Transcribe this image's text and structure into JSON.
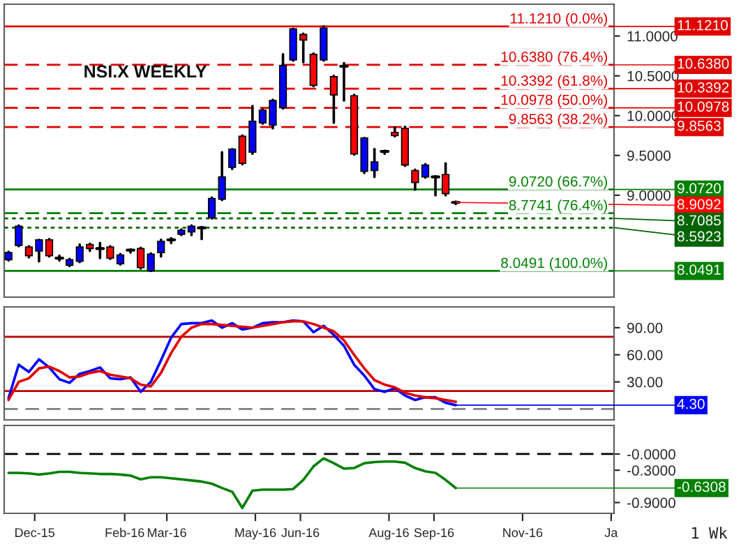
{
  "chart_data": [
    {
      "type": "candlestick",
      "title": "NSI.X WEEKLY",
      "tick_labels": "y",
      "grid": false,
      "annotations": [
        {
          "text": "11.1210",
          "x": "2017-01-03",
          "y": 11.121
        },
        {
          "text": "10.6380",
          "x": "2017-01-03",
          "y": 10.638
        },
        {
          "text": "10.3392",
          "x": "2017-01-03",
          "y": 10.3392
        },
        {
          "text": "10.0978",
          "x": "2017-01-03",
          "y": 10.0978
        },
        {
          "text": "9.8563",
          "x": "2017-01-03",
          "y": 9.8563
        },
        {
          "text": "9.0720",
          "x": "2017-01-03",
          "y": 9.072
        },
        {
          "text": "8.9092",
          "x": "2016-09-16",
          "y": 8.9092
        },
        {
          "text": "8.7085",
          "x": "2017-01-03",
          "y": 8.7085
        },
        {
          "text": "8.5923",
          "x": "2017-01-03",
          "y": 8.5923
        },
        {
          "text": "8.0491",
          "x": "2017-01-03",
          "y": 8.0491
        }
      ],
      "x": [
        "2015-11-13",
        "2015-11-20",
        "2015-11-27",
        "2015-12-04",
        "2015-12-11",
        "2015-12-18",
        "2015-12-25",
        "2016-01-01",
        "2016-01-08",
        "2016-01-15",
        "2016-01-22",
        "2016-01-29",
        "2016-02-05",
        "2016-02-12",
        "2016-02-19",
        "2016-02-26",
        "2016-03-04",
        "2016-03-11",
        "2016-03-18",
        "2016-03-25",
        "2016-04-01",
        "2016-04-08",
        "2016-04-15",
        "2016-04-22",
        "2016-04-29",
        "2016-05-06",
        "2016-05-13",
        "2016-05-20",
        "2016-05-27",
        "2016-06-03",
        "2016-06-10",
        "2016-06-17",
        "2016-06-24",
        "2016-07-01",
        "2016-07-08",
        "2016-07-15",
        "2016-07-22",
        "2016-07-29",
        "2016-08-05",
        "2016-08-12",
        "2016-08-19",
        "2016-08-26",
        "2016-09-02",
        "2016-09-09",
        "2016-09-16"
      ],
      "ohlc": [
        [
          8.19,
          8.29,
          8.18,
          8.28
        ],
        [
          8.37,
          8.62,
          8.36,
          8.61
        ],
        [
          8.35,
          8.36,
          8.22,
          8.24
        ],
        [
          8.3,
          8.44,
          8.17,
          8.44
        ],
        [
          8.44,
          8.45,
          8.23,
          8.24
        ],
        [
          8.21,
          8.24,
          8.18,
          8.21
        ],
        [
          8.12,
          8.2,
          8.11,
          8.19
        ],
        [
          8.17,
          8.38,
          8.16,
          8.35
        ],
        [
          8.38,
          8.39,
          8.3,
          8.33
        ],
        [
          8.33,
          8.4,
          8.21,
          8.33
        ],
        [
          8.35,
          8.36,
          8.2,
          8.21
        ],
        [
          8.14,
          8.26,
          8.13,
          8.25
        ],
        [
          8.31,
          8.32,
          8.28,
          8.31
        ],
        [
          8.33,
          8.34,
          8.08,
          8.09
        ],
        [
          8.05,
          8.27,
          8.0491,
          8.26
        ],
        [
          8.28,
          8.44,
          8.23,
          8.42
        ],
        [
          8.44,
          8.46,
          8.4,
          8.44
        ],
        [
          8.51,
          8.57,
          8.5,
          8.56
        ],
        [
          8.54,
          8.62,
          8.5,
          8.61
        ],
        [
          8.59,
          8.6,
          8.45,
          8.59
        ],
        [
          8.72,
          8.97,
          8.7085,
          8.96
        ],
        [
          8.95,
          9.54,
          8.94,
          9.23
        ],
        [
          9.35,
          9.58,
          9.33,
          9.58
        ],
        [
          9.74,
          9.75,
          9.39,
          9.4
        ],
        [
          9.54,
          10.12,
          9.52,
          9.93
        ],
        [
          9.91,
          10.08,
          9.9,
          10.07
        ],
        [
          9.88,
          10.2,
          9.84,
          10.19
        ],
        [
          10.1,
          10.77,
          10.09,
          10.63
        ],
        [
          10.7,
          11.09,
          10.69,
          11.09
        ],
        [
          11.02,
          11.03,
          10.67,
          10.95
        ],
        [
          10.77,
          10.78,
          10.37,
          10.38
        ],
        [
          10.7,
          11.121,
          10.69,
          11.1
        ],
        [
          10.49,
          10.5,
          9.91,
          10.26
        ],
        [
          10.62,
          10.66,
          10.19,
          10.62
        ],
        [
          10.25,
          10.26,
          9.51,
          9.52
        ],
        [
          9.3,
          9.72,
          9.28,
          9.72
        ],
        [
          9.31,
          9.58,
          9.23,
          9.42
        ],
        [
          9.55,
          9.56,
          9.52,
          9.55
        ],
        [
          9.79,
          9.85,
          9.74,
          9.75
        ],
        [
          9.84,
          9.86,
          9.37,
          9.38
        ],
        [
          9.31,
          9.32,
          9.07,
          9.16
        ],
        [
          9.23,
          9.39,
          9.22,
          9.38
        ],
        [
          9.23,
          9.24,
          9.0,
          9.23
        ],
        [
          9.26,
          9.4,
          9.0,
          9.02
        ],
        [
          8.9092,
          8.92,
          8.89,
          8.9092
        ]
      ],
      "colors": [
        "#0000ff",
        "#0000ff",
        "#ff0000",
        "#0000ff",
        "#ff0000",
        "#000000",
        "#0000ff",
        "#0000ff",
        "#ff0000",
        "#000000",
        "#ff0000",
        "#0000ff",
        "#000000",
        "#ff0000",
        "#0000ff",
        "#0000ff",
        "#000000",
        "#0000ff",
        "#0000ff",
        "#000000",
        "#0000ff",
        "#0000ff",
        "#0000ff",
        "#ff0000",
        "#0000ff",
        "#0000ff",
        "#0000ff",
        "#0000ff",
        "#0000ff",
        "#ff0000",
        "#ff0000",
        "#0000ff",
        "#ff0000",
        "#000000",
        "#ff0000",
        "#0000ff",
        "#0000ff",
        "#000000",
        "#ff0000",
        "#ff0000",
        "#ff0000",
        "#0000ff",
        "#000000",
        "#ff0000",
        "#000000"
      ],
      "xlim": [
        "2015-11-10",
        "2017-01-03"
      ],
      "ylim": [
        7.72,
        11.4
      ],
      "yticks": [
        {
          "value": 9.0,
          "label": "9.0000"
        },
        {
          "value": 9.5,
          "label": "9.5000"
        },
        {
          "value": 10.0,
          "label": "10.0000"
        },
        {
          "value": 10.5,
          "label": "10.5000"
        },
        {
          "value": 11.0,
          "label": "11.0000"
        }
      ],
      "ref_lines": [
        {
          "axis": "y",
          "value": 11.121,
          "label": "11.1210 (0.0%)",
          "color": "#e00000",
          "line_style": "solid"
        },
        {
          "axis": "y",
          "value": 10.638,
          "label": "10.6380 (76.4%)",
          "color": "#e00000",
          "line_style": "dashed"
        },
        {
          "axis": "y",
          "value": 10.3392,
          "label": "10.3392 (61.8%)",
          "color": "#e00000",
          "line_style": "dashed"
        },
        {
          "axis": "y",
          "value": 10.0978,
          "label": "10.0978 (50.0%)",
          "color": "#e00000",
          "line_style": "dashed"
        },
        {
          "axis": "y",
          "value": 9.8563,
          "label": "9.8563 (38.2%)",
          "color": "#e00000",
          "line_style": "dashed"
        },
        {
          "axis": "y",
          "value": 9.072,
          "label": "9.0720 (66.7%)",
          "color": "#008000",
          "line_style": "solid"
        },
        {
          "axis": "y",
          "value": 8.7741,
          "label": "8.7741 (76.4%)",
          "color": "#008000",
          "line_style": "dashed"
        },
        {
          "axis": "y",
          "value": 8.7085,
          "color": "#006400",
          "line_style": "dotted"
        },
        {
          "axis": "y",
          "value": 8.5923,
          "color": "#006400",
          "line_style": "dotted"
        },
        {
          "axis": "y",
          "value": 8.0491,
          "label": "8.0491 (100.0%)",
          "color": "#008000",
          "line_style": "solid"
        }
      ]
    },
    {
      "type": "line",
      "tick_labels": "y",
      "grid": false,
      "annotations": [
        {
          "text": "4.30",
          "x": "2016-09-16",
          "y": 4.3
        }
      ],
      "x": [
        "2015-11-13",
        "2015-11-20",
        "2015-11-27",
        "2015-12-04",
        "2015-12-11",
        "2015-12-18",
        "2015-12-25",
        "2016-01-01",
        "2016-01-08",
        "2016-01-15",
        "2016-01-22",
        "2016-01-29",
        "2016-02-05",
        "2016-02-12",
        "2016-02-19",
        "2016-02-26",
        "2016-03-04",
        "2016-03-11",
        "2016-03-18",
        "2016-03-25",
        "2016-04-01",
        "2016-04-08",
        "2016-04-15",
        "2016-04-22",
        "2016-04-29",
        "2016-05-06",
        "2016-05-13",
        "2016-05-20",
        "2016-05-27",
        "2016-06-03",
        "2016-06-10",
        "2016-06-17",
        "2016-06-24",
        "2016-07-01",
        "2016-07-08",
        "2016-07-15",
        "2016-07-22",
        "2016-07-29",
        "2016-08-05",
        "2016-08-12",
        "2016-08-19",
        "2016-08-26",
        "2016-09-02",
        "2016-09-09",
        "2016-09-16"
      ],
      "series": [
        {
          "color": "#0000ff",
          "values": [
            12,
            49,
            41,
            55,
            46,
            33,
            29,
            39,
            42,
            46,
            34,
            33,
            35,
            19,
            30,
            54,
            79,
            94,
            95,
            95,
            98,
            90,
            95,
            88,
            90,
            95,
            96,
            96,
            98,
            97,
            85,
            92,
            82,
            70,
            49,
            37,
            22,
            19,
            23,
            15,
            10,
            13,
            13,
            7,
            4.3
          ]
        },
        {
          "color": "#e00000",
          "values": [
            10,
            30,
            34,
            45,
            47,
            42,
            35,
            36,
            40,
            42,
            38,
            36,
            34,
            27,
            25,
            40,
            62,
            80,
            90,
            94,
            94,
            93,
            92,
            91,
            90,
            92,
            94,
            96,
            97,
            97,
            94,
            90,
            86,
            76,
            60,
            45,
            32,
            27,
            24,
            18,
            15,
            13,
            12,
            10,
            8
          ]
        }
      ],
      "xlim": [
        "2015-11-10",
        "2017-01-03"
      ],
      "ylim": [
        -12,
        113
      ],
      "yticks": [
        {
          "value": 30,
          "label": "30.00"
        },
        {
          "value": 60,
          "label": "60.00"
        },
        {
          "value": 90,
          "label": "90.00"
        }
      ],
      "ref_lines": [
        {
          "axis": "y",
          "value": 80,
          "color": "#c00000",
          "line_style": "solid"
        },
        {
          "axis": "y",
          "value": 20,
          "color": "#c00000",
          "line_style": "solid"
        },
        {
          "axis": "y",
          "value": 0,
          "color": "#808080",
          "line_style": "dashed"
        }
      ]
    },
    {
      "type": "line",
      "grid": false,
      "annotations": [
        "1 Wk",
        {
          "text": "-0.6308",
          "x": "2016-09-16",
          "y": -0.6308
        }
      ],
      "x": [
        "2015-11-13",
        "2015-11-20",
        "2015-11-27",
        "2015-12-04",
        "2015-12-11",
        "2015-12-18",
        "2015-12-25",
        "2016-01-01",
        "2016-01-08",
        "2016-01-15",
        "2016-01-22",
        "2016-01-29",
        "2016-02-05",
        "2016-02-12",
        "2016-02-19",
        "2016-02-26",
        "2016-03-04",
        "2016-03-11",
        "2016-03-18",
        "2016-03-25",
        "2016-04-01",
        "2016-04-08",
        "2016-04-15",
        "2016-04-22",
        "2016-04-29",
        "2016-05-06",
        "2016-05-13",
        "2016-05-20",
        "2016-05-27",
        "2016-06-03",
        "2016-06-10",
        "2016-06-17",
        "2016-06-24",
        "2016-07-01",
        "2016-07-08",
        "2016-07-15",
        "2016-07-22",
        "2016-07-29",
        "2016-08-05",
        "2016-08-12",
        "2016-08-19",
        "2016-08-26",
        "2016-09-02",
        "2016-09-09",
        "2016-09-16"
      ],
      "series": [
        {
          "color": "#008000",
          "values": [
            -0.35,
            -0.35,
            -0.36,
            -0.38,
            -0.36,
            -0.33,
            -0.33,
            -0.35,
            -0.36,
            -0.37,
            -0.37,
            -0.38,
            -0.4,
            -0.47,
            -0.43,
            -0.43,
            -0.45,
            -0.47,
            -0.49,
            -0.51,
            -0.55,
            -0.63,
            -0.7,
            -1.0,
            -0.68,
            -0.66,
            -0.66,
            -0.66,
            -0.65,
            -0.48,
            -0.23,
            -0.08,
            -0.17,
            -0.27,
            -0.26,
            -0.17,
            -0.15,
            -0.14,
            -0.14,
            -0.16,
            -0.26,
            -0.32,
            -0.35,
            -0.48,
            -0.6308
          ]
        }
      ],
      "xlim": [
        "2015-11-10",
        "2017-01-03"
      ],
      "ylim": [
        -1.1,
        0.53
      ],
      "xticks": [
        {
          "value": "2015-12-01",
          "label": "Dec-15"
        },
        {
          "value": "2016-02-01",
          "label": "Feb-16"
        },
        {
          "value": "2016-03-01",
          "label": "Mar-16"
        },
        {
          "value": "2016-05-01",
          "label": "May-16"
        },
        {
          "value": "2016-06-01",
          "label": "Jun-16"
        },
        {
          "value": "2016-08-01",
          "label": "Aug-16"
        },
        {
          "value": "2016-09-01",
          "label": "Sep-16"
        },
        {
          "value": "2016-11-01",
          "label": "Nov-16"
        },
        {
          "value": "2017-01-01",
          "label": "Ja"
        }
      ],
      "yticks": [
        {
          "value": 0,
          "label": "-0.0000"
        },
        {
          "value": -0.3,
          "label": "-0.3000"
        },
        {
          "value": -0.9,
          "label": "-0.9000"
        }
      ],
      "ref_lines": [
        {
          "axis": "y",
          "value": 0,
          "color": "#000000",
          "line_style": "dashed"
        }
      ]
    }
  ]
}
